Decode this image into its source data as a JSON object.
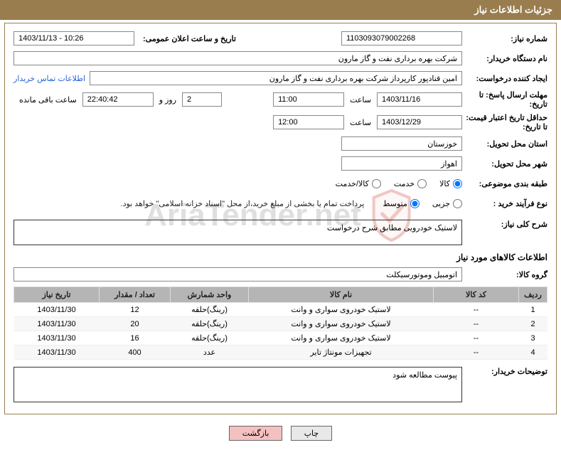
{
  "header": {
    "title": "جزئیات اطلاعات نیاز"
  },
  "fields": {
    "need_number_label": "شماره نیاز:",
    "need_number": "1103093079002268",
    "announce_date_label": "تاریخ و ساعت اعلان عمومی:",
    "announce_date": "1403/11/13 - 10:26",
    "buyer_org_label": "نام دستگاه خریدار:",
    "buyer_org": "شرکت بهره برداری نفت و گاز مارون",
    "creator_label": "ایجاد کننده درخواست:",
    "creator": "امین قنادپور کارپرداز شرکت بهره برداری نفت و گاز مارون",
    "contact_link": "اطلاعات تماس خریدار",
    "response_deadline_label": "مهلت ارسال پاسخ: تا تاریخ:",
    "response_date": "1403/11/16",
    "time_label": "ساعت",
    "response_time": "11:00",
    "days_remaining": "2",
    "days_and": "روز و",
    "time_remaining": "22:40:42",
    "remaining_label": "ساعت باقی مانده",
    "validity_label": "حداقل تاریخ اعتبار قیمت: تا تاریخ:",
    "validity_date": "1403/12/29",
    "validity_time": "12:00",
    "province_label": "استان محل تحویل:",
    "province": "خوزستان",
    "city_label": "شهر محل تحویل:",
    "city": "اهواز",
    "classification_label": "طبقه بندی موضوعی:",
    "class_kala": "کالا",
    "class_khedmat": "خدمت",
    "class_kala_khedmat": "کالا/خدمت",
    "purchase_type_label": "نوع فرآیند خرید :",
    "type_small": "جزیی",
    "type_medium": "متوسط",
    "payment_note": "پرداخت تمام یا بخشی از مبلغ خرید،از محل \"اسناد خزانه اسلامی\" خواهد بود.",
    "general_desc_label": "شرح کلی نیاز:",
    "general_desc": "لاستیک خودرویی مطابق شرح درخواست",
    "goods_info_label": "اطلاعات کالاهای مورد نیاز",
    "group_label": "گروه کالا:",
    "group_value": "اتومبیل وموتورسیکلت",
    "buyer_notes_label": "توضیحات خریدار:",
    "buyer_notes": "پیوست مطالعه شود"
  },
  "table": {
    "headers": {
      "idx": "ردیف",
      "code": "کد کالا",
      "name": "نام کالا",
      "unit": "واحد شمارش",
      "qty": "تعداد / مقدار",
      "date": "تاریخ نیاز"
    },
    "rows": [
      {
        "idx": "1",
        "code": "--",
        "name": "لاستیک خودروی سواری و وانت",
        "unit": "(رینگ)حلقه",
        "qty": "12",
        "date": "1403/11/30"
      },
      {
        "idx": "2",
        "code": "--",
        "name": "لاستیک خودروی سواری و وانت",
        "unit": "(رینگ)حلقه",
        "qty": "20",
        "date": "1403/11/30"
      },
      {
        "idx": "3",
        "code": "--",
        "name": "لاستیک خودروی سواری و وانت",
        "unit": "(رینگ)حلقه",
        "qty": "16",
        "date": "1403/11/30"
      },
      {
        "idx": "4",
        "code": "--",
        "name": "تجهیزات مونتاژ تایر",
        "unit": "عدد",
        "qty": "400",
        "date": "1403/11/30"
      }
    ]
  },
  "buttons": {
    "print": "چاپ",
    "back": "بازگشت"
  },
  "watermark": {
    "text": "AriaTender.net",
    "shield_stroke": "#c94a3f",
    "shield_fill_opacity": "0.15"
  }
}
